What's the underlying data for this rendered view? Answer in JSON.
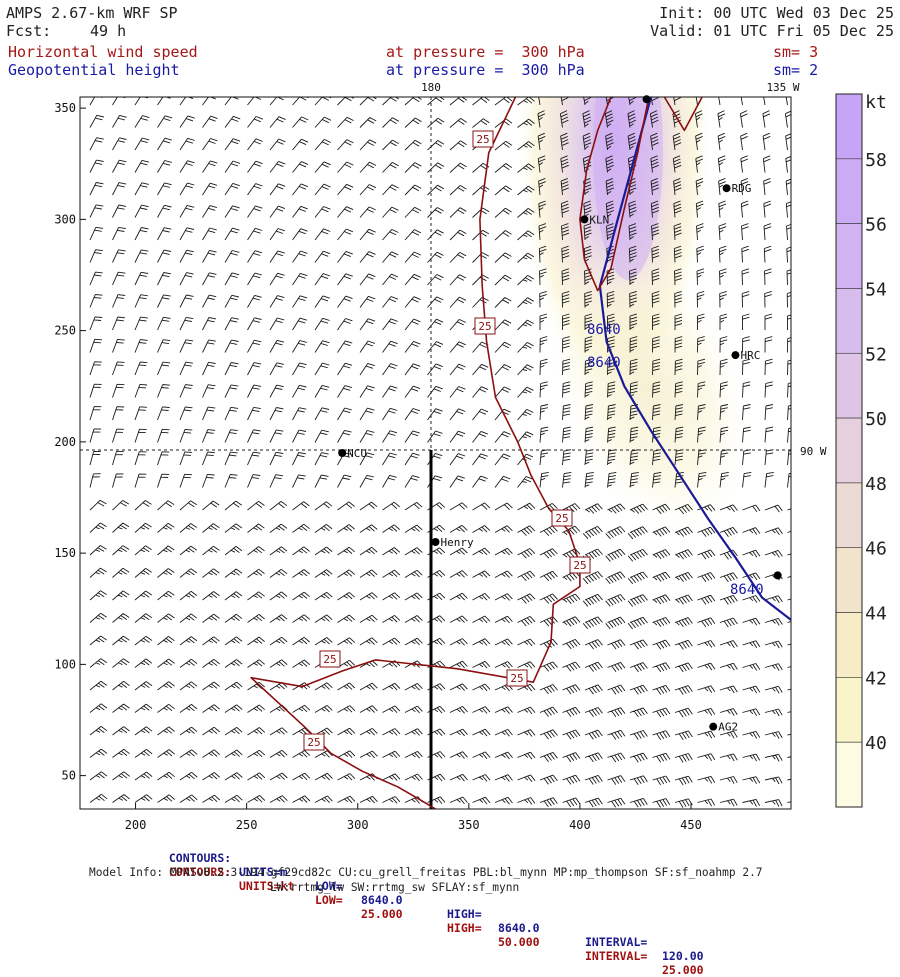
{
  "header": {
    "title": "AMPS 2.67-km WRF SP",
    "fcst_label": "Fcst:",
    "fcst_value": "49 h",
    "init": "Init: 00 UTC Wed 03 Dec 25",
    "valid": "Valid: 01 UTC Fri 05 Dec 25",
    "field1": "Horizontal wind speed",
    "field1_level": "at pressure =  300 hPa",
    "field1_sm": "sm= 3",
    "field2": "Geopotential height",
    "field2_level": "at pressure =  300 hPa",
    "field2_sm": "sm= 2"
  },
  "map": {
    "meridian_180": "180",
    "meridian_135w": "135 W",
    "meridian_90w": "90 W",
    "stations": [
      {
        "name": "KLN",
        "x": 402,
        "y": 300
      },
      {
        "name": "RDG",
        "x": 466,
        "y": 314
      },
      {
        "name": "HRC",
        "x": 470,
        "y": 239
      },
      {
        "name": "NCU",
        "x": 293,
        "y": 195
      },
      {
        "name": "Henry",
        "x": 335,
        "y": 155
      },
      {
        "name": "AG2",
        "x": 460,
        "y": 72
      }
    ],
    "contour_labels_wind": [
      "25",
      "25",
      "25",
      "25",
      "25",
      "25",
      "25"
    ],
    "contour_labels_height": [
      "8640",
      "8640",
      "8640"
    ]
  },
  "chart_data": {
    "type": "heatmap",
    "title": "Horizontal wind speed / Geopotential height at pressure = 300 hPa",
    "xlabel": "",
    "ylabel": "",
    "x_range": [
      175,
      495
    ],
    "y_range": [
      35,
      355
    ],
    "x_ticks": [
      200,
      250,
      300,
      350,
      400,
      450
    ],
    "y_ticks": [
      50,
      100,
      150,
      200,
      250,
      300,
      350
    ],
    "shading_field": "Horizontal wind speed (kt)",
    "colorbar": {
      "unit": "kt",
      "levels": [
        40,
        42,
        44,
        46,
        48,
        50,
        52,
        54,
        56,
        58
      ],
      "colors": [
        "#fdfbe4",
        "#f9f4c9",
        "#f6ecc5",
        "#f2e3cc",
        "#ecdad4",
        "#e6d0dd",
        "#dec5e6",
        "#d7bcee",
        "#d1b3f2",
        "#ccabf5",
        "#c8a4f6"
      ]
    },
    "contours": [
      {
        "field": "Geopotential height",
        "units": "m",
        "low": "8640.0",
        "high": "8640.0",
        "interval": "120.00",
        "color": "#1a1a96",
        "path": [
          [
            432,
            355
          ],
          [
            417,
            300
          ],
          [
            409,
            270
          ],
          [
            412,
            245
          ],
          [
            420,
            225
          ],
          [
            432,
            205
          ],
          [
            445,
            185
          ],
          [
            458,
            165
          ],
          [
            470,
            148
          ],
          [
            482,
            130
          ],
          [
            495,
            120
          ]
        ]
      },
      {
        "field": "Horizontal wind speed",
        "units": "kt",
        "low": "25.000",
        "high": "50.000",
        "interval": "25.000",
        "color": "#8b1010",
        "path": [
          [
            371,
            355
          ],
          [
            359,
            330
          ],
          [
            355,
            300
          ],
          [
            356,
            270
          ],
          [
            358,
            245
          ],
          [
            362,
            220
          ],
          [
            372,
            200
          ],
          [
            378,
            185
          ],
          [
            386,
            170
          ],
          [
            395,
            160
          ],
          [
            400,
            145
          ],
          [
            400,
            135
          ],
          [
            388,
            127
          ],
          [
            387,
            110
          ],
          [
            379,
            92
          ],
          [
            345,
            98
          ],
          [
            308,
            102
          ],
          [
            293,
            97
          ],
          [
            275,
            90
          ],
          [
            252,
            94
          ],
          [
            276,
            72
          ],
          [
            288,
            60
          ],
          [
            302,
            52
          ],
          [
            318,
            45
          ],
          [
            330,
            38
          ],
          [
            335,
            35
          ]
        ]
      },
      {
        "field": "Horizontal wind speed",
        "units": "kt",
        "low": "25.000",
        "high": "50.000",
        "interval": "25.000",
        "color": "#8b1010",
        "path": [
          [
            414,
            355
          ],
          [
            408,
            340
          ],
          [
            403,
            322
          ],
          [
            400,
            300
          ],
          [
            402,
            282
          ],
          [
            408,
            268
          ],
          [
            414,
            278
          ],
          [
            420,
            305
          ],
          [
            426,
            330
          ],
          [
            431,
            355
          ]
        ]
      },
      {
        "field": "Horizontal wind speed",
        "units": "kt",
        "low": "25.000",
        "high": "50.000",
        "interval": "25.000",
        "color": "#8b1010",
        "path": [
          [
            438,
            355
          ],
          [
            447,
            340
          ],
          [
            455,
            355
          ]
        ]
      }
    ]
  },
  "footer": {
    "c1_label": "CONTOURS:",
    "c1_units": "UNITS=m",
    "c1_low_label": "LOW=",
    "c1_low": "8640.0",
    "c1_high_label": "HIGH=",
    "c1_high": "8640.0",
    "c1_int_label": "INTERVAL=",
    "c1_int": "120.00",
    "c2_label": "CONTOURS:",
    "c2_units": "UNITS=kt",
    "c2_low_label": "LOW=",
    "c2_low": "25.000",
    "c2_high_label": "HIGH=",
    "c2_high": "50.000",
    "c2_int_label": "INTERVAL=",
    "c2_int": "25.000",
    "model_info": "Model Info: MPASv8.2.3-194-gf29cd82c CU:cu_grell_freitas PBL:bl_mynn MP:mp_thompson SF:sf_noahmp 2.7",
    "model_info2": "LW:rrtmg_lw SW:rrtmg_sw SFLAY:sf_mynn"
  }
}
